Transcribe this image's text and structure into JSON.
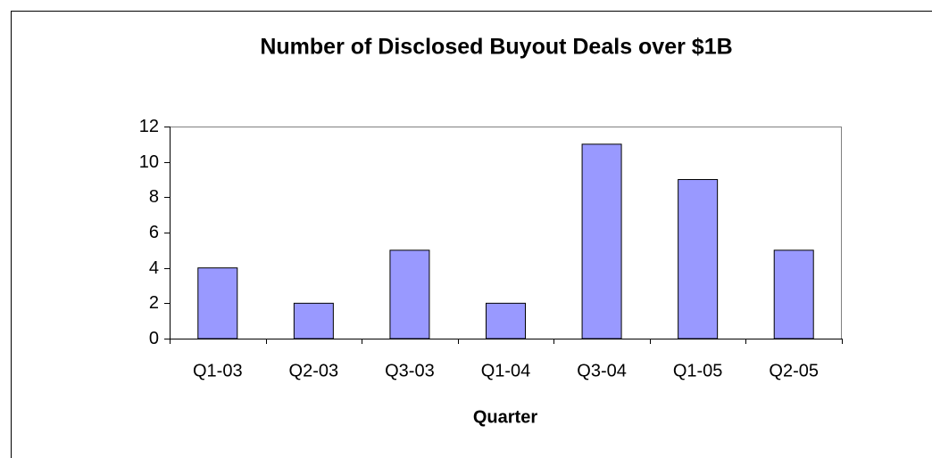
{
  "chart_data": {
    "type": "bar",
    "title": "Number of Disclosed Buyout Deals over $1B",
    "x_label": "Quarter",
    "categories": [
      "Q1-03",
      "Q2-03",
      "Q3-03",
      "Q1-04",
      "Q3-04",
      "Q1-05",
      "Q2-05"
    ],
    "values": [
      4,
      2,
      5,
      2,
      11,
      9,
      5
    ],
    "color": "#9999ff",
    "ylim": [
      0,
      12
    ],
    "yticks": [
      0,
      2,
      4,
      6,
      8,
      10,
      12
    ],
    "grid": false
  }
}
